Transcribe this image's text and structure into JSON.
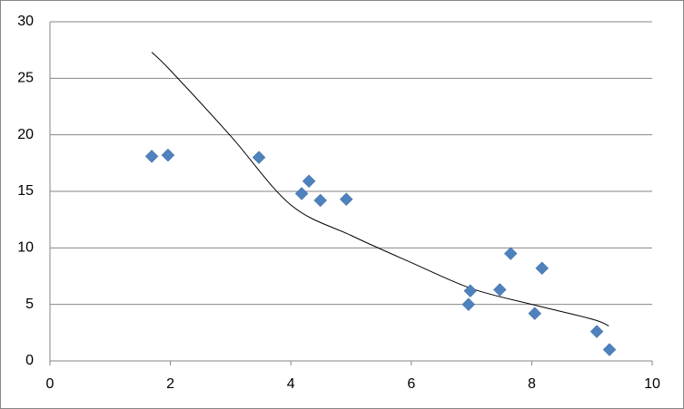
{
  "chart_data": {
    "type": "scatter",
    "x": [
      1.69,
      1.96,
      3.47,
      4.18,
      4.3,
      4.49,
      4.92,
      6.98,
      6.95,
      7.47,
      7.65,
      8.17,
      8.05,
      9.08,
      9.29
    ],
    "values": [
      18.1,
      18.2,
      18.0,
      14.8,
      15.9,
      14.2,
      14.3,
      6.2,
      5.0,
      6.3,
      9.5,
      8.2,
      4.2,
      2.6,
      1.0
    ],
    "color": "#4f81bd",
    "trendline": {
      "x": [
        1.69,
        2,
        3,
        4,
        5,
        6,
        7,
        8,
        9,
        9.28
      ],
      "values": [
        27.3,
        25.7,
        19.9,
        13.8,
        11.1,
        8.7,
        6.4,
        5.0,
        3.7,
        3.1
      ],
      "color": "#000000"
    },
    "xlim": [
      0,
      10
    ],
    "xticks": [
      0,
      2,
      4,
      6,
      8,
      10
    ],
    "ylim": [
      0,
      30
    ],
    "yticks": [
      0,
      5,
      10,
      15,
      20,
      25,
      30
    ],
    "grid": true
  }
}
